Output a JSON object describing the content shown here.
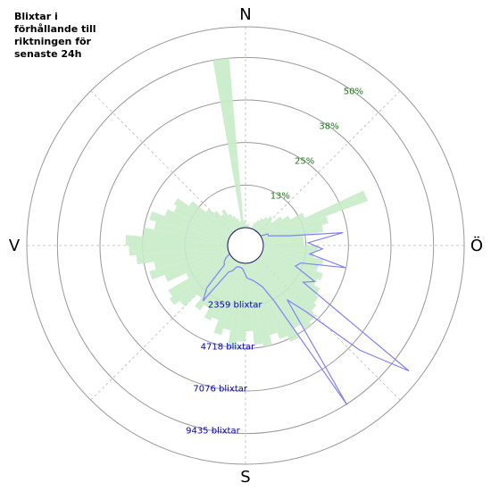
{
  "chart_data": {
    "type": "polar",
    "title": "Blixtar i\nförhållande till\nriktningen för\nsenaste 24h",
    "direction_labels": [
      "N",
      "Ö",
      "S",
      "V"
    ],
    "x": [
      2.5,
      7.5,
      12.5,
      17.5,
      22.5,
      27.5,
      32.5,
      37.5,
      42.5,
      47.5,
      52.5,
      57.5,
      62.5,
      67.5,
      72.5,
      77.5,
      82.5,
      87.5,
      92.5,
      97.5,
      102.5,
      107.5,
      112.5,
      117.5,
      122.5,
      127.5,
      132.5,
      137.5,
      142.5,
      147.5,
      152.5,
      157.5,
      162.5,
      167.5,
      172.5,
      177.5,
      182.5,
      187.5,
      192.5,
      197.5,
      202.5,
      207.5,
      212.5,
      217.5,
      222.5,
      227.5,
      232.5,
      237.5,
      242.5,
      247.5,
      252.5,
      257.5,
      262.5,
      267.5,
      272.5,
      277.5,
      282.5,
      287.5,
      292.5,
      297.5,
      302.5,
      307.5,
      312.5,
      317.5,
      322.5,
      327.5,
      332.5,
      337.5,
      342.5,
      347.5,
      352.5,
      357.5
    ],
    "series": [
      {
        "color": "#c8ecc8",
        "values": [
          1,
          1,
          0,
          0,
          2,
          3,
          4,
          5,
          6,
          5,
          8,
          10,
          14,
          33,
          20,
          18,
          12,
          12,
          16,
          15,
          18,
          17,
          19,
          18,
          20,
          21,
          22,
          24,
          25,
          23,
          26,
          24,
          22,
          25,
          24,
          20,
          23,
          25,
          20,
          22,
          18,
          19,
          16,
          18,
          15,
          20,
          22,
          21,
          14,
          20,
          24,
          22,
          27,
          29,
          30,
          25,
          22,
          24,
          20,
          18,
          19,
          15,
          10,
          8,
          6,
          7,
          5,
          4,
          3,
          2,
          50,
          2
        ]
      },
      {
        "color": "#8080ff",
        "axis": "r2",
        "values": [
          0,
          0,
          0,
          0,
          0,
          0,
          0,
          0,
          0,
          0,
          0,
          0,
          400,
          400,
          800,
          1500,
          4470,
          2480,
          3280,
          2600,
          4700,
          2230,
          2000,
          3330,
          2800,
          10430,
          7600,
          4000,
          2800,
          9480,
          2530,
          1500,
          1200,
          1000,
          900,
          800,
          500,
          300,
          250,
          250,
          300,
          600,
          750,
          2880,
          2180,
          600,
          500,
          300,
          0,
          0,
          0,
          0,
          0,
          0,
          0,
          0,
          0,
          0,
          0,
          0,
          0,
          0,
          0,
          0,
          0,
          0,
          0,
          0,
          0,
          0,
          0,
          0
        ]
      }
    ],
    "rlim": [
      0,
      59
    ],
    "rticks": [
      {
        "value": 12.5,
        "label": "13%"
      },
      {
        "value": 25,
        "label": "25%"
      },
      {
        "value": 37.5,
        "label": "38%"
      },
      {
        "value": 50,
        "label": "50%"
      }
    ],
    "r2lim": [
      0,
      11133
    ],
    "r2ticks": [
      {
        "value": 2359,
        "label": "2359 blixtar"
      },
      {
        "value": 4718,
        "label": "4718 blixtar"
      },
      {
        "value": 7076,
        "label": "7076 blixtar"
      },
      {
        "value": 9435,
        "label": "9435 blixtar"
      }
    ]
  }
}
